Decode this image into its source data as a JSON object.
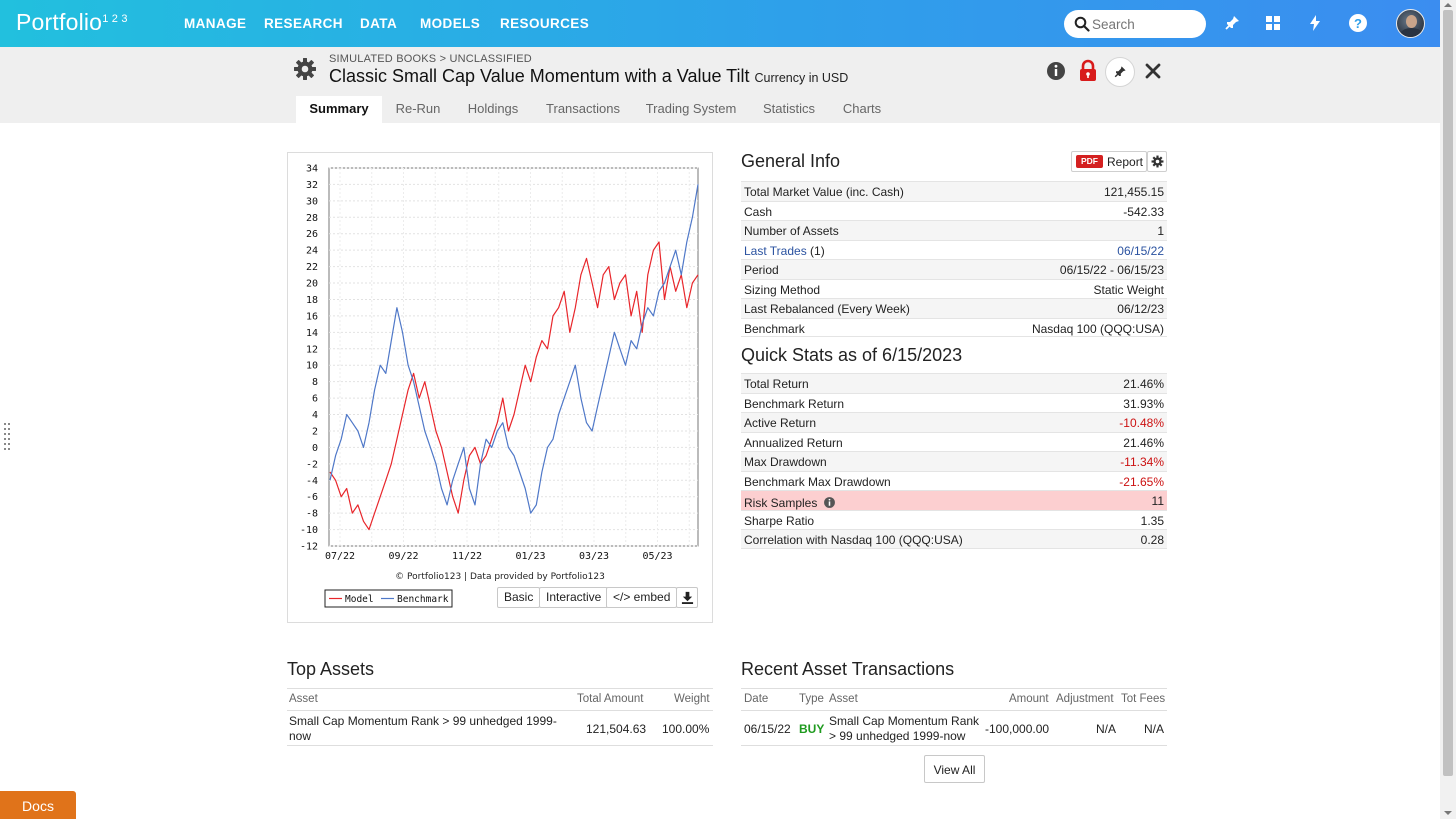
{
  "nav": {
    "logo": "Portfolio",
    "logo_sup": "1 2 3",
    "items": [
      "MANAGE",
      "RESEARCH",
      "DATA",
      "MODELS",
      "RESOURCES"
    ],
    "search_placeholder": "Search",
    "icons": [
      "pin-icon",
      "grid-icon",
      "bolt-icon",
      "help-icon"
    ]
  },
  "header": {
    "breadcrumb": "SIMULATED BOOKS > UNCLASSIFIED",
    "title": "Classic Small Cap Value Momentum with a Value Tilt",
    "currency": "Currency in USD"
  },
  "tabs": [
    "Summary",
    "Re-Run",
    "Holdings",
    "Transactions",
    "Trading System",
    "Statistics",
    "Charts"
  ],
  "chart_data": {
    "type": "line",
    "x_ticks": [
      "07/22",
      "09/22",
      "11/22",
      "01/23",
      "03/23",
      "05/23"
    ],
    "ylim": [
      -12,
      34
    ],
    "y_ticks": [
      -12,
      -10,
      -8,
      -6,
      -4,
      -2,
      0,
      2,
      4,
      6,
      8,
      10,
      12,
      14,
      16,
      18,
      20,
      22,
      24,
      26,
      28,
      30,
      32,
      34
    ],
    "grid": true,
    "credit": "© Portfolio123 | Data provided by Portfolio123",
    "legend_placement": "bottom-left",
    "series": [
      {
        "name": "Model",
        "color": "#e8262b",
        "values": [
          -3,
          -4,
          -6,
          -5,
          -8,
          -7,
          -9,
          -10,
          -8,
          -6,
          -4,
          -2,
          1,
          4,
          7,
          9,
          6,
          8,
          5,
          2,
          0,
          -3,
          -6,
          -8,
          -4,
          -1,
          0,
          -2,
          -1,
          1,
          3,
          6,
          2,
          4,
          7,
          10,
          8,
          11,
          13,
          12,
          16,
          17,
          19,
          14,
          17,
          21,
          23,
          20,
          17,
          21,
          22,
          18,
          20,
          21,
          16,
          19,
          14,
          21,
          24,
          25,
          18,
          22,
          19,
          21,
          17,
          20,
          21
        ]
      },
      {
        "name": "Benchmark",
        "color": "#4f78c8",
        "values": [
          -4,
          -1,
          1,
          4,
          3,
          2,
          0,
          3,
          7,
          10,
          9,
          13,
          17,
          14,
          10,
          8,
          5,
          2,
          0,
          -2,
          -5,
          -7,
          -4,
          -2,
          0,
          -5,
          -7,
          -2,
          1,
          0,
          2,
          3,
          0,
          -1,
          -3,
          -5,
          -8,
          -7,
          -3,
          0,
          1,
          4,
          6,
          8,
          10,
          6,
          3,
          2,
          5,
          8,
          11,
          14,
          12,
          10,
          13,
          12,
          15,
          17,
          16,
          19,
          20,
          22,
          24,
          21,
          25,
          28,
          32
        ]
      }
    ]
  },
  "chart_buttons": [
    "Basic",
    "Interactive",
    "</> embed"
  ],
  "general_info": {
    "title": "General Info",
    "report_label": "Report",
    "pdf_badge": "PDF",
    "rows": [
      {
        "k": "Total Market Value (inc. Cash)",
        "v": "121,455.15"
      },
      {
        "k": "Cash",
        "v": "-542.33"
      },
      {
        "k": "Number of Assets",
        "v": "1"
      },
      {
        "k": "Last Trades",
        "k2": "(1)",
        "v": "06/15/22"
      },
      {
        "k": "Period",
        "v": "06/15/22 - 06/15/23"
      },
      {
        "k": "Sizing Method",
        "v": "Static Weight"
      },
      {
        "k": "Last Rebalanced (Every Week)",
        "v": "06/12/23"
      },
      {
        "k": "Benchmark",
        "v": "Nasdaq 100 (QQQ:USA)"
      }
    ]
  },
  "quick_stats": {
    "title": "Quick Stats as of 6/15/2023",
    "rows": [
      {
        "k": "Total Return",
        "v": "21.46%"
      },
      {
        "k": "Benchmark Return",
        "v": "31.93%"
      },
      {
        "k": "Active Return",
        "v": "-10.48%"
      },
      {
        "k": "Annualized Return",
        "v": "21.46%"
      },
      {
        "k": "Max Drawdown",
        "v": "-11.34%"
      },
      {
        "k": "Benchmark Max Drawdown",
        "v": "-21.65%"
      },
      {
        "k": "Risk Samples",
        "v": "11"
      },
      {
        "k": "Sharpe Ratio",
        "v": "1.35"
      },
      {
        "k": "Correlation with Nasdaq 100 (QQQ:USA)",
        "v": "0.28"
      }
    ]
  },
  "top_assets": {
    "title": "Top Assets",
    "headers": [
      "Asset",
      "Total Amount",
      "Weight"
    ],
    "rows": [
      {
        "asset_line1": "Small Cap Momentum Rank > 99 unhedged 1999-",
        "asset_line2": "now",
        "amount": "121,504.63",
        "weight": "100.00%"
      }
    ]
  },
  "recent_tx": {
    "title": "Recent Asset Transactions",
    "headers": [
      "Date",
      "Type",
      "Asset",
      "Amount",
      "Adjustment",
      "Tot Fees"
    ],
    "rows": [
      {
        "date": "06/15/22",
        "type": "BUY",
        "asset_line1": "Small Cap Momentum Rank",
        "asset_line2": "> 99 unhedged 1999-now",
        "amount": "-100,000.00",
        "adjustment": "N/A",
        "fees": "N/A"
      }
    ],
    "view_all": "View All"
  },
  "docs": "Docs"
}
